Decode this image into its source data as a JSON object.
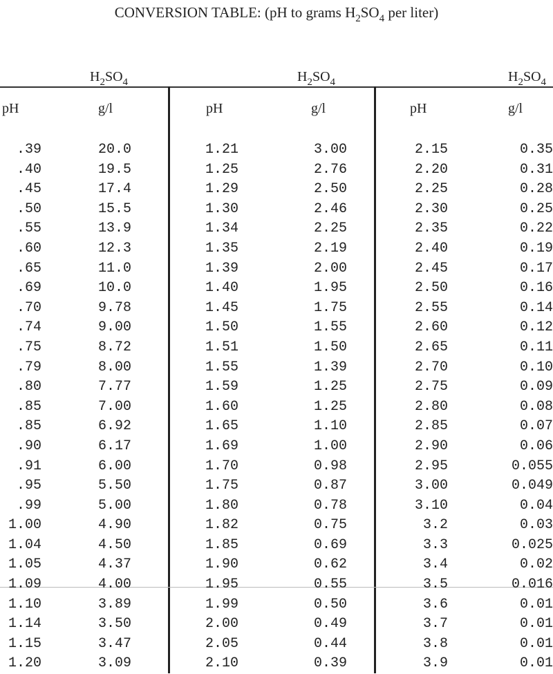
{
  "title": {
    "prefix": "CONVERSION TABLE: (pH to grams H",
    "sub1": "2",
    "mid": "SO",
    "sub2": "4",
    "suffix": " per liter)"
  },
  "headers": {
    "acid_main": "H",
    "acid_sub1": "2",
    "acid_mid": "SO",
    "acid_sub2": "4",
    "ph": "pH",
    "unit": "g/l"
  },
  "groups": [
    {
      "ph": [
        ".39",
        ".40",
        ".45",
        ".50",
        ".55",
        ".60",
        ".65",
        ".69",
        ".70",
        ".74",
        ".75",
        ".79",
        ".80",
        ".85",
        ".85",
        ".90",
        ".91",
        ".95",
        ".99",
        "1.00",
        "1.04",
        "1.05",
        "1.09",
        "1.10",
        "1.14",
        "1.15",
        "1.20"
      ],
      "g": [
        "20.0",
        "19.5",
        "17.4",
        "15.5",
        "13.9",
        "12.3",
        "11.0",
        "10.0",
        "9.78",
        "9.00",
        "8.72",
        "8.00",
        "7.77",
        "7.00",
        "6.92",
        "6.17",
        "6.00",
        "5.50",
        "5.00",
        "4.90",
        "4.50",
        "4.37",
        "4.00",
        "3.89",
        "3.50",
        "3.47",
        "3.09"
      ]
    },
    {
      "ph": [
        "1.21",
        "1.25",
        "1.29",
        "1.30",
        "1.34",
        "1.35",
        "1.39",
        "1.40",
        "1.45",
        "1.50",
        "1.51",
        "1.55",
        "1.59",
        "1.60",
        "1.65",
        "1.69",
        "1.70",
        "1.75",
        "1.80",
        "1.82",
        "1.85",
        "1.90",
        "1.95",
        "1.99",
        "2.00",
        "2.05",
        "2.10"
      ],
      "g": [
        "3.00",
        "2.76",
        "2.50",
        "2.46",
        "2.25",
        "2.19",
        "2.00",
        "1.95",
        "1.75",
        "1.55",
        "1.50",
        "1.39",
        "1.25",
        "1.25",
        "1.10",
        "1.00",
        "0.98",
        "0.87",
        "0.78",
        "0.75",
        "0.69",
        "0.62",
        "0.55",
        "0.50",
        "0.49",
        "0.44",
        "0.39"
      ]
    },
    {
      "ph": [
        "2.15",
        "2.20",
        "2.25",
        "2.30",
        "2.35",
        "2.40",
        "2.45",
        "2.50",
        "2.55",
        "2.60",
        "2.65",
        "2.70",
        "2.75",
        "2.80",
        "2.85",
        "2.90",
        "2.95",
        "3.00",
        "3.10",
        "3.2",
        "3.3",
        "3.4",
        "3.5",
        "3.6",
        "3.7",
        "3.8",
        "3.9"
      ],
      "g": [
        "0.35",
        "0.31",
        "0.28",
        "0.25",
        "0.22",
        "0.19",
        "0.17",
        "0.16",
        "0.14",
        "0.12",
        "0.11",
        "0.10",
        "0.09",
        "0.08",
        "0.07",
        "0.06",
        "0.055",
        "0.049",
        "0.04",
        "0.03",
        "0.025",
        "0.02",
        "0.016",
        "0.01",
        "0.01",
        "0.01",
        "0.01"
      ]
    }
  ]
}
